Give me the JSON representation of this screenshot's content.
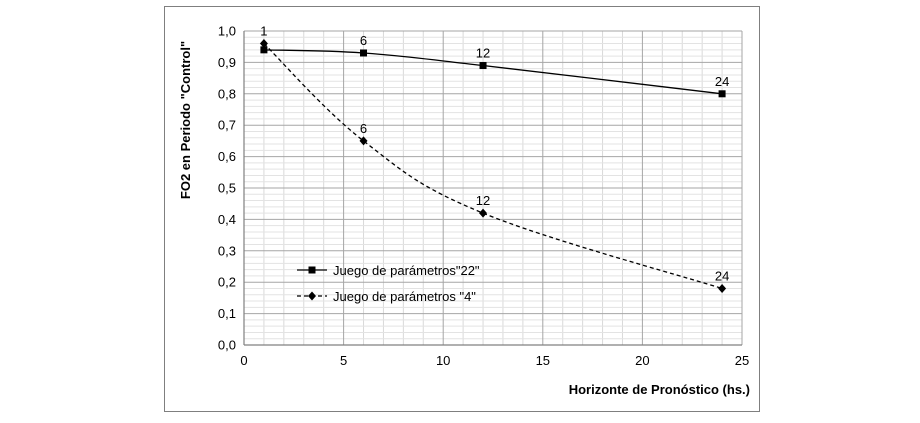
{
  "chart_data": {
    "type": "line",
    "title": "",
    "xlabel": "Horizonte de Pronóstico (hs.)",
    "ylabel": "FO2 en Periodo \"Control\"",
    "xlim": [
      0,
      25
    ],
    "ylim": [
      0,
      1
    ],
    "x_ticks": [
      0,
      5,
      10,
      15,
      20,
      25
    ],
    "x_tick_labels": [
      "0",
      "5",
      "10",
      "15",
      "20",
      "25"
    ],
    "y_ticks": [
      0,
      0.1,
      0.2,
      0.3,
      0.4,
      0.5,
      0.6,
      0.7,
      0.8,
      0.9,
      1.0
    ],
    "y_tick_labels": [
      "0,0",
      "0,1",
      "0,2",
      "0,3",
      "0,4",
      "0,5",
      "0,6",
      "0,7",
      "0,8",
      "0,9",
      "1,0"
    ],
    "grid": true,
    "legend_position": "bottom-left",
    "series": [
      {
        "name": "Juego de parámetros\"22\"",
        "line_style": "solid",
        "marker": "square",
        "x": [
          1,
          6,
          12,
          24
        ],
        "y": [
          0.94,
          0.93,
          0.89,
          0.8
        ],
        "point_labels": [
          "",
          "6",
          "12",
          "24"
        ]
      },
      {
        "name": "Juego de parámetros \"4\"",
        "line_style": "dashed",
        "marker": "diamond",
        "x": [
          1,
          6,
          12,
          24
        ],
        "y": [
          0.96,
          0.65,
          0.42,
          0.18
        ],
        "point_labels": [
          "1",
          "6",
          "12",
          "24"
        ]
      }
    ]
  }
}
